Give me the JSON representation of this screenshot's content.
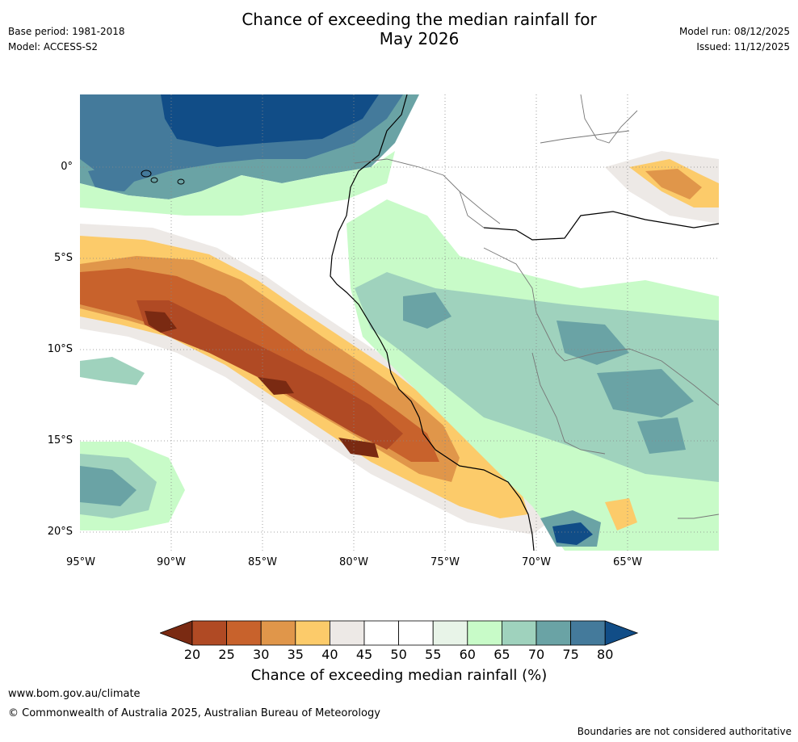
{
  "header": {
    "base_period": "Base period: 1981-2018",
    "model": "Model: ACCESS-S2",
    "model_run": "Model run: 08/12/2025",
    "issued": "Issued: 11/12/2025",
    "title_line1": "Chance of exceeding the median rainfall for",
    "title_line2": "May 2026"
  },
  "map": {
    "lat_labels": [
      "0°",
      "5°S",
      "10°S",
      "15°S",
      "20°S"
    ],
    "lon_labels": [
      "95°W",
      "90°W",
      "85°W",
      "80°W",
      "75°W",
      "70°W",
      "65°W"
    ],
    "region": "Western South America and eastern Pacific Ocean"
  },
  "colorbar": {
    "ticks": [
      "20",
      "25",
      "30",
      "35",
      "40",
      "45",
      "50",
      "55",
      "60",
      "65",
      "70",
      "75",
      "80"
    ],
    "label": "Chance of exceeding median rainfall (%)",
    "colors": [
      "#7a2a12",
      "#b04a24",
      "#c8622c",
      "#e0964a",
      "#fccb6a",
      "#ede9e6",
      "#ffffff",
      "#ffffff",
      "#e8f4e8",
      "#c8fbc8",
      "#9fd2bd",
      "#6aa3a5",
      "#447a9b",
      "#114d87"
    ]
  },
  "footer": {
    "url": "www.bom.gov.au/climate",
    "copyright": "© Commonwealth of Australia 2025, Australian Bureau of Meteorology",
    "note": "Boundaries are not considered authoritative"
  }
}
